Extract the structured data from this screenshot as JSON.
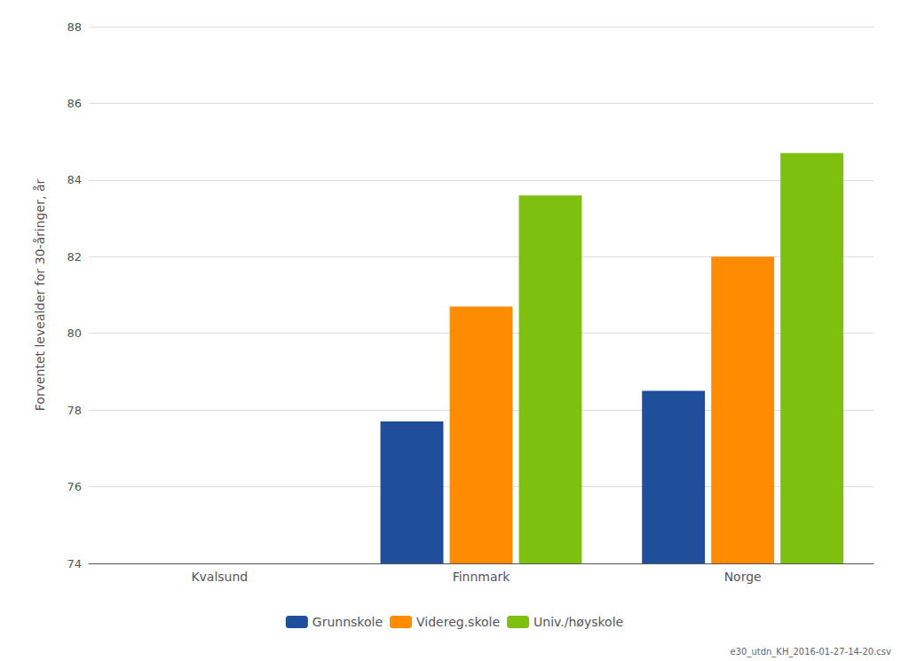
{
  "chart_data": {
    "type": "bar",
    "categories": [
      "Kvalsund",
      "Finnmark",
      "Norge"
    ],
    "series": [
      {
        "name": "Grunnskole",
        "color": "#1F4E9A",
        "values": [
          null,
          77.7,
          78.5
        ]
      },
      {
        "name": "Videreg.skole",
        "color": "#FF8C00",
        "values": [
          null,
          80.7,
          82.0
        ]
      },
      {
        "name": "Univ./høyskole",
        "color": "#7DC010",
        "values": [
          null,
          83.6,
          84.7
        ]
      }
    ],
    "ylabel": "Forventet levealder for 30-åringer, år",
    "ylim": [
      74,
      88
    ],
    "yticks": [
      74,
      76,
      78,
      80,
      82,
      84,
      86,
      88
    ],
    "grid": true,
    "legend": "bottom",
    "footnote": "e30_utdn_KH_2016-01-27-14-20.csv"
  }
}
